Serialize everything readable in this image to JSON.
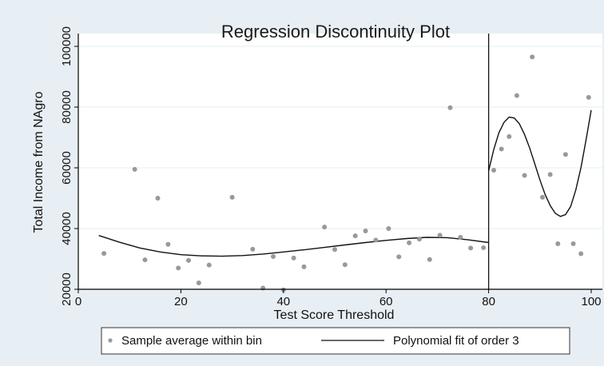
{
  "chart_data": {
    "type": "scatter",
    "title": "Regression Discontinuity Plot",
    "xlabel": "Test Score Threshold",
    "ylabel": "Total Income from NAgro",
    "xlim": [
      0,
      100
    ],
    "ylim": [
      20000,
      100000
    ],
    "x_ticks": [
      0,
      20,
      40,
      60,
      80,
      100
    ],
    "y_ticks": [
      20000,
      40000,
      60000,
      80000,
      100000
    ],
    "grid": "horizontal",
    "cutoff": 80,
    "legend_position": "bottom",
    "colors": {
      "plot_background": "#ffffff",
      "outer_background": "#e8eff4",
      "grid": "#e6edf2",
      "points": "#999999",
      "fit_line": "#111111",
      "cutoff_line": "#111111"
    },
    "series": [
      {
        "name": "Sample average within bin",
        "kind": "points",
        "points": [
          [
            5,
            31800
          ],
          [
            11,
            59500
          ],
          [
            13,
            29700
          ],
          [
            15.5,
            50000
          ],
          [
            17.5,
            34800
          ],
          [
            19.5,
            27000
          ],
          [
            21.5,
            29500
          ],
          [
            23.5,
            22100
          ],
          [
            25.5,
            28000
          ],
          [
            30,
            50300
          ],
          [
            34,
            33200
          ],
          [
            36,
            20400
          ],
          [
            38,
            30800
          ],
          [
            40,
            19800
          ],
          [
            42,
            30300
          ],
          [
            44,
            27400
          ],
          [
            48,
            40500
          ],
          [
            50,
            33100
          ],
          [
            52,
            28100
          ],
          [
            54,
            37600
          ],
          [
            56,
            39200
          ],
          [
            58,
            36200
          ],
          [
            60.5,
            40000
          ],
          [
            62.5,
            30700
          ],
          [
            64.5,
            35300
          ],
          [
            66.5,
            36500
          ],
          [
            68.5,
            29800
          ],
          [
            70.5,
            37800
          ],
          [
            72.5,
            79800
          ],
          [
            74.5,
            37100
          ],
          [
            76.5,
            33600
          ],
          [
            79,
            33700
          ],
          [
            81,
            59200
          ],
          [
            82.5,
            66200
          ],
          [
            84,
            70300
          ],
          [
            85.5,
            83800
          ],
          [
            87,
            57500
          ],
          [
            88.5,
            96500
          ],
          [
            90.5,
            50300
          ],
          [
            92,
            57800
          ],
          [
            93.5,
            35000
          ],
          [
            95,
            64400
          ],
          [
            96.5,
            35000
          ],
          [
            98,
            31700
          ],
          [
            99.5,
            83200
          ]
        ]
      },
      {
        "name": "Polynomial fit of order 3",
        "kind": "line",
        "segments": [
          [
            [
              4,
              37700
            ],
            [
              8,
              35500
            ],
            [
              12,
              33600
            ],
            [
              16,
              32300
            ],
            [
              20,
              31400
            ],
            [
              24,
              31000
            ],
            [
              28,
              30900
            ],
            [
              32,
              31100
            ],
            [
              36,
              31600
            ],
            [
              40,
              32300
            ],
            [
              44,
              33000
            ],
            [
              48,
              33800
            ],
            [
              52,
              34600
            ],
            [
              56,
              35400
            ],
            [
              60,
              36100
            ],
            [
              64,
              36700
            ],
            [
              68,
              37100
            ],
            [
              72,
              37000
            ],
            [
              76,
              36300
            ],
            [
              80,
              35400
            ]
          ],
          [
            [
              80,
              59000
            ],
            [
              81,
              66000
            ],
            [
              82,
              71500
            ],
            [
              83,
              75000
            ],
            [
              84,
              76700
            ],
            [
              85,
              76400
            ],
            [
              86,
              74500
            ],
            [
              87,
              71000
            ],
            [
              88,
              66500
            ],
            [
              89,
              61300
            ],
            [
              90,
              56000
            ],
            [
              91,
              51300
            ],
            [
              92,
              47600
            ],
            [
              93,
              45000
            ],
            [
              94,
              44000
            ],
            [
              95,
              44600
            ],
            [
              96,
              47300
            ],
            [
              97,
              52700
            ],
            [
              98,
              60100
            ],
            [
              99,
              69300
            ],
            [
              100,
              79000
            ]
          ]
        ]
      }
    ]
  }
}
